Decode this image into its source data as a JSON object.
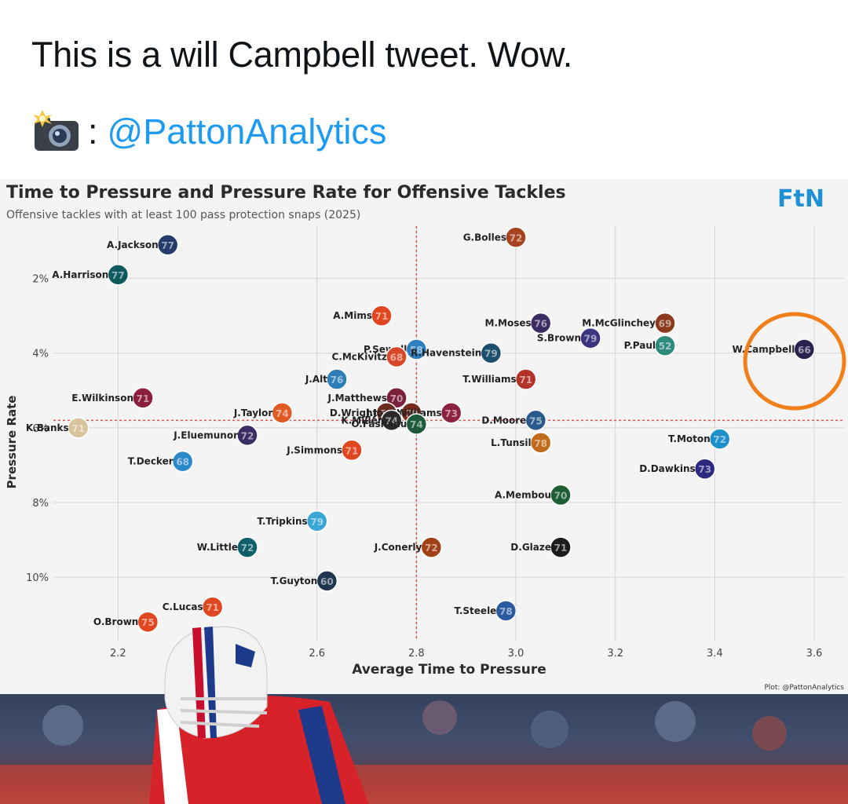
{
  "tweet": {
    "text": "This is a will Campbell tweet.  Wow.",
    "credit_colon": ":",
    "credit_handle": "@PattonAnalytics",
    "camera_icon": "camera-with-flash-icon"
  },
  "colors": {
    "link": "#1d9bf0",
    "highlight_circle": "#f07f1c",
    "ref_line": "#d9534f"
  },
  "chart_data": {
    "type": "scatter",
    "title": "Time to Pressure and Pressure Rate for Offensive Tackles",
    "subtitle": "Offensive tackles with at least 100 pass protection snaps (2025)",
    "logo": "FtN",
    "xlabel": "Average Time to Pressure",
    "ylabel": "Pressure Rate",
    "footer": "Plot: @PattonAnalytics",
    "xlim": [
      2.07,
      3.66
    ],
    "ylim": [
      0.6,
      11.7
    ],
    "y_inverted": true,
    "xticks": [
      2.2,
      2.6,
      2.8,
      3.0,
      3.2,
      3.4,
      3.6
    ],
    "yticks": [
      2,
      4,
      6,
      8,
      10
    ],
    "ytick_labels": [
      "2%",
      "4%",
      "6%",
      "8%",
      "10%"
    ],
    "grid": true,
    "reference_lines": {
      "x": 2.8,
      "y": 5.8
    },
    "highlight": "W.Campbell",
    "points": [
      {
        "name": "A.Jackson",
        "number": "77",
        "x": 2.3,
        "y": 1.1,
        "color": "#243b6b"
      },
      {
        "name": "A.Harrison",
        "number": "77",
        "x": 2.2,
        "y": 1.9,
        "color": "#0e5a5f"
      },
      {
        "name": "G.Bolles",
        "number": "72",
        "x": 3.0,
        "y": 0.9,
        "color": "#a8431f"
      },
      {
        "name": "M.McGlinchey",
        "number": "69",
        "x": 3.3,
        "y": 3.2,
        "color": "#8b3a1e"
      },
      {
        "name": "A.Mims",
        "number": "71",
        "x": 2.73,
        "y": 3.0,
        "color": "#e0461f"
      },
      {
        "name": "M.Moses",
        "number": "76",
        "x": 3.05,
        "y": 3.2,
        "color": "#3b2d63"
      },
      {
        "name": "S.Brown",
        "number": "79",
        "x": 3.15,
        "y": 3.6,
        "color": "#3b3580"
      },
      {
        "name": "P.Paul",
        "number": "52",
        "x": 3.3,
        "y": 3.8,
        "color": "#2e8a7a"
      },
      {
        "name": "W.Campbell",
        "number": "66",
        "x": 3.58,
        "y": 3.9,
        "color": "#2a2350"
      },
      {
        "name": "P.Sewell",
        "number": "58",
        "x": 2.8,
        "y": 3.9,
        "color": "#2f7fc1"
      },
      {
        "name": "C.McKivitz",
        "number": "68",
        "x": 2.76,
        "y": 4.1,
        "color": "#d8472a"
      },
      {
        "name": "R.Havenstein",
        "number": "79",
        "x": 2.95,
        "y": 4.0,
        "color": "#1d4e6b"
      },
      {
        "name": "T.Williams",
        "number": "71",
        "x": 3.02,
        "y": 4.7,
        "color": "#b33328"
      },
      {
        "name": "E.Wilkinson",
        "number": "71",
        "x": 2.25,
        "y": 5.2,
        "color": "#8c1f3b"
      },
      {
        "name": "J.Alt",
        "number": "76",
        "x": 2.64,
        "y": 4.7,
        "color": "#2d7fb5"
      },
      {
        "name": "J.Matthews",
        "number": "70",
        "x": 2.76,
        "y": 5.2,
        "color": "#7b1f3b"
      },
      {
        "name": "D.Wright",
        "number": "58",
        "x": 2.74,
        "y": 5.6,
        "color": "#6b2a1e"
      },
      {
        "name": "J.Jones",
        "number": "70",
        "x": 2.79,
        "y": 5.6,
        "color": "#7a2b1c"
      },
      {
        "name": "J.Williams",
        "number": "73",
        "x": 2.87,
        "y": 5.6,
        "color": "#8c2240"
      },
      {
        "name": "J.Taylor",
        "number": "74",
        "x": 2.53,
        "y": 5.6,
        "color": "#e05a24"
      },
      {
        "name": "K.Banks",
        "number": "71",
        "x": 2.12,
        "y": 6.0,
        "color": "#d8c39a"
      },
      {
        "name": "K.Miller",
        "number": "74",
        "x": 2.75,
        "y": 5.8,
        "color": "#2b2b2b"
      },
      {
        "name": "O.Fashanu",
        "number": "74",
        "x": 2.8,
        "y": 5.9,
        "color": "#1e5a3a"
      },
      {
        "name": "D.Moore",
        "number": "75",
        "x": 3.04,
        "y": 5.8,
        "color": "#2a5a8c"
      },
      {
        "name": "J.Eluemunor",
        "number": "72",
        "x": 2.46,
        "y": 6.2,
        "color": "#3a2d63"
      },
      {
        "name": "J.Simmons",
        "number": "71",
        "x": 2.67,
        "y": 6.6,
        "color": "#e0461f"
      },
      {
        "name": "L.Tunsil",
        "number": "78",
        "x": 3.05,
        "y": 6.4,
        "color": "#c06a1a"
      },
      {
        "name": "T.Moton",
        "number": "72",
        "x": 3.41,
        "y": 6.3,
        "color": "#1f8fc9"
      },
      {
        "name": "T.Decker",
        "number": "68",
        "x": 2.33,
        "y": 6.9,
        "color": "#2a88c9"
      },
      {
        "name": "D.Dawkins",
        "number": "73",
        "x": 3.38,
        "y": 7.1,
        "color": "#2c2a80"
      },
      {
        "name": "A.Membou",
        "number": "70",
        "x": 3.09,
        "y": 7.8,
        "color": "#1d5e34"
      },
      {
        "name": "T.Tripkins",
        "number": "79",
        "x": 2.6,
        "y": 8.5,
        "color": "#3aa7d4"
      },
      {
        "name": "W.Little",
        "number": "72",
        "x": 2.46,
        "y": 9.2,
        "color": "#0f5f6a"
      },
      {
        "name": "J.Conerly",
        "number": "72",
        "x": 2.83,
        "y": 9.2,
        "color": "#a04016"
      },
      {
        "name": "D.Glaze",
        "number": "71",
        "x": 3.09,
        "y": 9.2,
        "color": "#1c1c1c"
      },
      {
        "name": "T.Guyton",
        "number": "60",
        "x": 2.62,
        "y": 10.1,
        "color": "#1f3550"
      },
      {
        "name": "T.Steele",
        "number": "78",
        "x": 2.98,
        "y": 10.9,
        "color": "#2a5aa0"
      },
      {
        "name": "C.Lucas",
        "number": "71",
        "x": 2.39,
        "y": 10.8,
        "color": "#e0461f"
      },
      {
        "name": "O.Brown",
        "number": "75",
        "x": 2.26,
        "y": 11.2,
        "color": "#e0461f"
      }
    ]
  }
}
